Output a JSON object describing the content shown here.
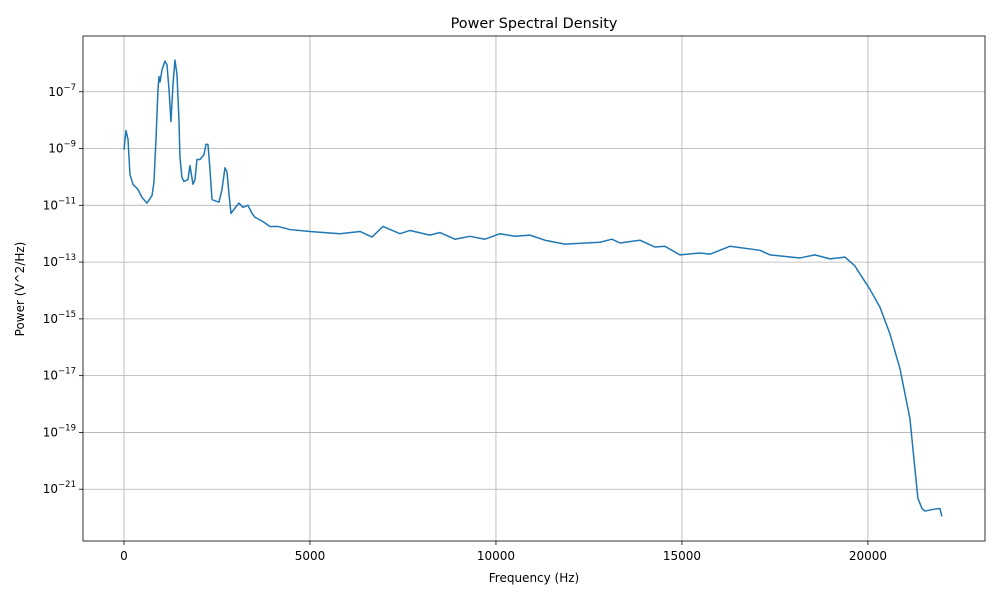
{
  "chart_data": {
    "type": "line",
    "title": "Power Spectral Density",
    "x_label": "Frequency (Hz)",
    "y_label": "Power (V^2/Hz)",
    "x": [
      0,
      54,
      108,
      161,
      242,
      376,
      484,
      618,
      753,
      806,
      860,
      914,
      941,
      968,
      1022,
      1102,
      1156,
      1210,
      1263,
      1317,
      1371,
      1425,
      1478,
      1505,
      1559,
      1613,
      1720,
      1774,
      1855,
      1909,
      1962,
      2043,
      2151,
      2204,
      2258,
      2312,
      2366,
      2473,
      2554,
      2634,
      2715,
      2769,
      2823,
      2876,
      2957,
      3091,
      3199,
      3333,
      3441,
      3522,
      3710,
      3925,
      4140,
      4462,
      5000,
      5806,
      6344,
      6667,
      6962,
      7419,
      7688,
      8226,
      8495,
      8898,
      9301,
      9704,
      10108,
      10511,
      10914,
      11317,
      11855,
      12796,
      13118,
      13333,
      13871,
      14274,
      14543,
      14946,
      15484,
      15753,
      16290,
      17097,
      17366,
      18172,
      18575,
      18978,
      19382,
      19651,
      19839,
      20054,
      20323,
      20591,
      20860,
      21129,
      21263,
      21344,
      21452,
      21532,
      21801,
      21935,
      21989
    ],
    "series": [
      {
        "color": "#1f77b4",
        "values": [
          9e-10,
          4.3e-09,
          2.1e-09,
          1.2e-10,
          5.5e-11,
          3.6e-11,
          1.9e-11,
          1.2e-11,
          2.2e-11,
          6.5e-11,
          2.1e-09,
          1.2e-07,
          3.4e-07,
          2.2e-07,
          5.9e-07,
          1.2e-06,
          8.9e-07,
          1.2e-07,
          8.9e-09,
          1.8e-07,
          1.3e-06,
          4e-07,
          1e-08,
          4.8e-10,
          9.5e-11,
          6.9e-11,
          8.1e-11,
          2.5e-10,
          5.5e-11,
          8.1e-11,
          4.1e-10,
          4.1e-10,
          6.1e-10,
          1.4e-09,
          1.4e-09,
          1.8e-10,
          1.6e-11,
          1.4e-11,
          1.3e-11,
          3.6e-11,
          2.1e-10,
          1.5e-10,
          2.5e-11,
          5.2e-12,
          7.2e-12,
          1.2e-11,
          8.5e-12,
          1e-11,
          5.2e-12,
          3.8e-12,
          2.8e-12,
          1.8e-12,
          1.8e-12,
          1.4e-12,
          1.2e-12,
          1e-12,
          1.2e-12,
          7.6e-13,
          1.8e-12,
          1e-12,
          1.3e-12,
          8.9e-13,
          1.1e-12,
          6.4e-13,
          8.1e-13,
          6.4e-13,
          1e-12,
          8.1e-13,
          8.9e-13,
          5.9e-13,
          4.3e-13,
          5e-13,
          6.4e-13,
          4.7e-13,
          5.9e-13,
          3.4e-13,
          3.6e-13,
          1.8e-13,
          2.1e-13,
          1.9e-13,
          3.6e-13,
          2.6e-13,
          1.8e-13,
          1.4e-13,
          1.8e-13,
          1.3e-13,
          1.5e-13,
          7.3e-14,
          3e-14,
          1.1e-14,
          2.6e-15,
          3e-16,
          1.8e-17,
          3.1e-19,
          5.5e-21,
          4.8e-22,
          2.1e-22,
          1.7e-22,
          2e-22,
          2.1e-22,
          1.1e-22
        ]
      }
    ],
    "xlim": [
      -1102,
      23148
    ],
    "xticks": [
      0,
      5000,
      10000,
      15000,
      20000
    ],
    "ylim": [
      9.2e-06,
      1.5e-23
    ],
    "log_y": true,
    "yticks": [
      {
        "value": 1e-21,
        "label": "10−21"
      },
      {
        "value": 1e-19,
        "label": "10−19"
      },
      {
        "value": 1e-17,
        "label": "10−17"
      },
      {
        "value": 1e-15,
        "label": "10−15"
      },
      {
        "value": 1e-13,
        "label": "10−13"
      },
      {
        "value": 1e-11,
        "label": "10−11"
      },
      {
        "value": 1e-09,
        "label": "10−9"
      },
      {
        "value": 1e-07,
        "label": "10−7"
      }
    ],
    "grid": true
  }
}
